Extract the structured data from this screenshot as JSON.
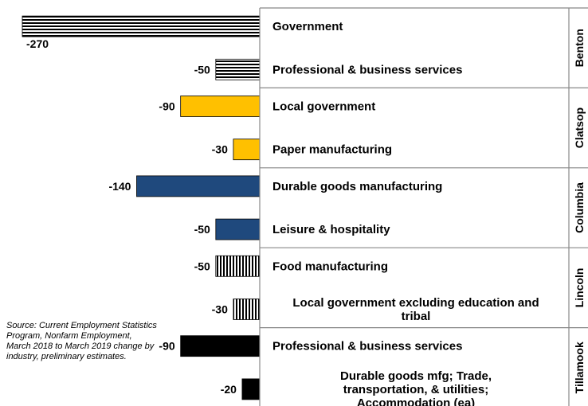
{
  "chart_data": {
    "type": "bar",
    "orientation": "horizontal",
    "xlim": [
      -270,
      0
    ],
    "groups": [
      {
        "county": "Benton",
        "fill": "hatch",
        "items": [
          {
            "category": "Government",
            "value": -270,
            "label": "-270"
          },
          {
            "category": "Professional & business services",
            "value": -50,
            "label": "-50"
          }
        ]
      },
      {
        "county": "Clatsop",
        "fill": "#ffc000",
        "items": [
          {
            "category": "Local government",
            "value": -90,
            "label": "-90"
          },
          {
            "category": "Paper manufacturing",
            "value": -30,
            "label": "-30"
          }
        ]
      },
      {
        "county": "Columbia",
        "fill": "#1f497d",
        "items": [
          {
            "category": "Durable goods manufacturing",
            "value": -140,
            "label": "-140"
          },
          {
            "category": "Leisure & hospitality",
            "value": -50,
            "label": "-50"
          }
        ]
      },
      {
        "county": "Lincoln",
        "fill": "vstripe",
        "items": [
          {
            "category": "Food manufacturing",
            "value": -50,
            "label": "-50"
          },
          {
            "category": "Local government excluding education and tribal",
            "value": -30,
            "label": "-30"
          }
        ]
      },
      {
        "county": "Tillamook",
        "fill": "#000000",
        "items": [
          {
            "category": "Professional & business services",
            "value": -90,
            "label": "-90"
          },
          {
            "category": "Durable goods mfg; Trade, transportation, & utilities; Accommodation (ea)",
            "value": -20,
            "label": "-20"
          }
        ]
      }
    ]
  },
  "source_note": "Source: Current Employment Statistics Program, Nonfarm Employment, March 2018 to March 2019 change by industry, preliminary estimates."
}
